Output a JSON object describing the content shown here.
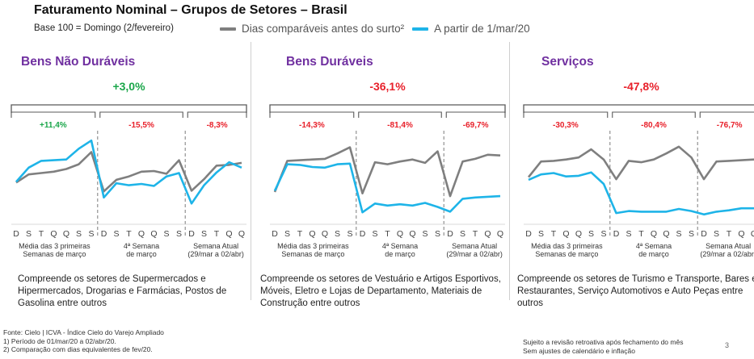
{
  "header": {
    "title": "Faturamento Nominal – Grupos de Setores – Brasil",
    "subtitle": "Base 100 = Domingo (2/fevereiro)"
  },
  "legend": {
    "gray_label": "Dias comparáveis antes do surto²",
    "blue_label": "A partir de 1/mar/20"
  },
  "colors": {
    "gray": "#7f7f7f",
    "blue": "#1eb4e8",
    "positive": "#1aa64a",
    "negative": "#e8202a",
    "title_purple": "#7030a0",
    "bracket": "#595959",
    "divider": "#9a9a9a"
  },
  "chart_data": [
    {
      "type": "line",
      "title": "Bens Não Duráveis",
      "total_change": "+3,0%",
      "segment_changes": [
        "+11,4%",
        "-15,5%",
        "-8,3%"
      ],
      "x": [
        "D",
        "S",
        "T",
        "Q",
        "Q",
        "S",
        "S",
        "D",
        "S",
        "T",
        "Q",
        "Q",
        "S",
        "S",
        "D",
        "S",
        "T",
        "Q",
        "Q"
      ],
      "group_labels": [
        "Média das 3 primeiras\nSemanas  de março",
        "4ª Semana\nde março",
        "Semana Atual\n(29/mar a 02/abr)"
      ],
      "series": [
        {
          "name": "Dias comparáveis antes do surto²",
          "values": [
            58,
            70,
            72,
            74,
            78,
            85,
            103,
            45,
            62,
            67,
            74,
            75,
            71,
            91,
            46,
            63,
            83,
            84,
            87
          ]
        },
        {
          "name": "A partir de 1/mar/20",
          "values": [
            59,
            80,
            90,
            91,
            92,
            108,
            120,
            36,
            57,
            54,
            56,
            53,
            67,
            72,
            27,
            54,
            73,
            88,
            80
          ]
        }
      ]
    },
    {
      "type": "line",
      "title": "Bens Duráveis",
      "total_change": "-36,1%",
      "segment_changes": [
        "-14,3%",
        "-81,4%",
        "-69,7%"
      ],
      "x": [
        "D",
        "S",
        "T",
        "Q",
        "Q",
        "S",
        "S",
        "D",
        "S",
        "T",
        "Q",
        "Q",
        "S",
        "S",
        "D",
        "S",
        "T",
        "Q",
        "Q"
      ],
      "group_labels": [
        "Média das 3 primeiras\nSemanas  de março",
        "4ª Semana\nde março",
        "Semana Atual\n(29/mar a 02/abr)"
      ],
      "series": [
        {
          "name": "Dias comparáveis antes do surto²",
          "values": [
            44,
            90,
            91,
            92,
            93,
            101,
            110,
            42,
            88,
            85,
            89,
            92,
            87,
            104,
            38,
            89,
            93,
            99,
            98
          ]
        },
        {
          "name": "A partir de 1/mar/20",
          "values": [
            46,
            85,
            84,
            81,
            80,
            85,
            86,
            14,
            27,
            24,
            26,
            24,
            28,
            22,
            15,
            34,
            36,
            37,
            38
          ]
        }
      ]
    },
    {
      "type": "line",
      "title": "Serviços",
      "total_change": "-47,8%",
      "segment_changes": [
        "-30,3%",
        "-80,4%",
        "-76,7%"
      ],
      "x": [
        "D",
        "S",
        "T",
        "Q",
        "Q",
        "S",
        "S",
        "D",
        "S",
        "T",
        "Q",
        "Q",
        "S",
        "S",
        "D",
        "S",
        "T",
        "Q",
        "Q"
      ],
      "group_labels": [
        "Média das 3 primeiras\nSemanas  de março",
        "4ª Semana\nde março",
        "Semana Atual\n(29/mar a 02/abr)"
      ],
      "series": [
        {
          "name": "Dias comparáveis antes do surto²",
          "values": [
            66,
            89,
            90,
            92,
            95,
            107,
            92,
            63,
            90,
            88,
            92,
            101,
            111,
            95,
            63,
            89,
            90,
            91,
            92
          ]
        },
        {
          "name": "A partir de 1/mar/20",
          "values": [
            62,
            70,
            72,
            67,
            68,
            73,
            56,
            13,
            16,
            15,
            15,
            15,
            19,
            16,
            11,
            15,
            17,
            20,
            20
          ]
        }
      ]
    }
  ],
  "descriptions": [
    "Compreende os setores de Supermercados e Hipermercados, Drogarias e Farmácias, Postos de Gasolina entre outros",
    "Compreende os setores de Vestuário e Artigos Esportivos, Móveis, Eletro e Lojas de Departamento, Materiais de Construção entre outros",
    "Compreende os setores de Turismo e Transporte, Bares e Restaurantes, Serviço Automotivos e Auto Peças entre outros"
  ],
  "footer": {
    "source": "Fonte: Cielo | ICVA - Índice Cielo do Varejo Ampliado",
    "note1": "1)    Período de 01/mar/20 a 02/abr/20.",
    "note2": "2)    Comparação com dias equivalentes de fev/20.",
    "disclaimer1": "Sujeito a revisão retroativa após fechamento do mês",
    "disclaimer2": "Sem ajustes de calendário e inflação",
    "page": "3"
  }
}
